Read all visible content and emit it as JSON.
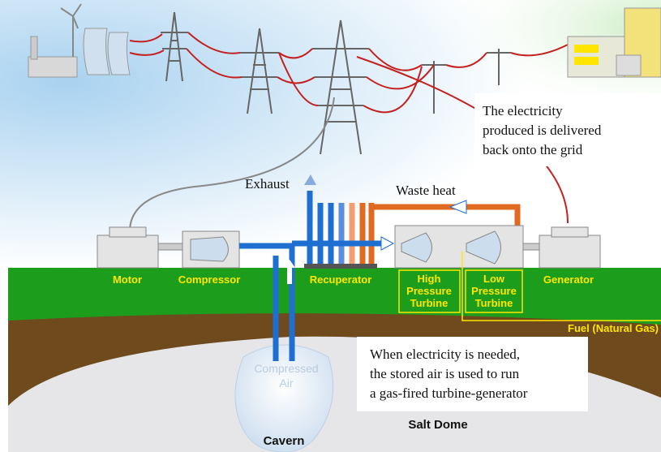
{
  "grid_note": {
    "lines": [
      "The electricity",
      "produced is delivered",
      "back onto the grid"
    ]
  },
  "exhaust": "Exhaust",
  "waste_heat": "Waste heat",
  "components": {
    "motor": "Motor",
    "compressor": "Compressor",
    "recuperator": "Recuperator",
    "high_pressure_turbine": [
      "High",
      "Pressure",
      "Turbine"
    ],
    "low_pressure_turbine": [
      "Low",
      "Pressure",
      "Turbine"
    ],
    "generator": "Generator"
  },
  "fuel": "Fuel (Natural Gas)",
  "use_note": {
    "lines": [
      "When electricity is needed,",
      "the stored air is used to run",
      "a gas-fired turbine-generator"
    ]
  },
  "compressed_air": [
    "Compressed",
    "Air"
  ],
  "cavern": "Cavern",
  "salt_dome": "Salt Dome"
}
